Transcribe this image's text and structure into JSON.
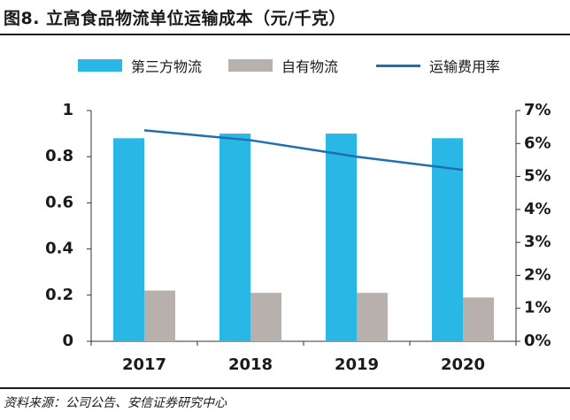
{
  "header": {
    "title": "图8. 立高食品物流单位运输成本（元/千克）"
  },
  "footer": {
    "source": "资料来源：公司公告、安信证券研究中心"
  },
  "colors": {
    "bar_third_party": "#29B8E6",
    "bar_own": "#B8B0AD",
    "line_rate": "#1F6FB2",
    "axis": "#333333"
  },
  "chart_data": {
    "type": "bar",
    "categories": [
      "2017",
      "2018",
      "2019",
      "2020"
    ],
    "series": [
      {
        "name": "第三方物流",
        "type": "bar",
        "axis": "left",
        "values": [
          0.88,
          0.9,
          0.9,
          0.88
        ]
      },
      {
        "name": "自有物流",
        "type": "bar",
        "axis": "left",
        "values": [
          0.22,
          0.21,
          0.21,
          0.19
        ]
      },
      {
        "name": "运输费用率",
        "type": "line",
        "axis": "right",
        "values": [
          6.4,
          6.1,
          5.6,
          5.2
        ]
      }
    ],
    "y_left": {
      "ylim": [
        0,
        1
      ],
      "ticks": [
        "0",
        "0.2",
        "0.4",
        "0.6",
        "0.8",
        "1"
      ]
    },
    "y_right": {
      "ylim": [
        0,
        7
      ],
      "ticks": [
        "0%",
        "1%",
        "2%",
        "3%",
        "4%",
        "5%",
        "6%",
        "7%"
      ]
    },
    "legend_position": "top",
    "grid": false
  }
}
